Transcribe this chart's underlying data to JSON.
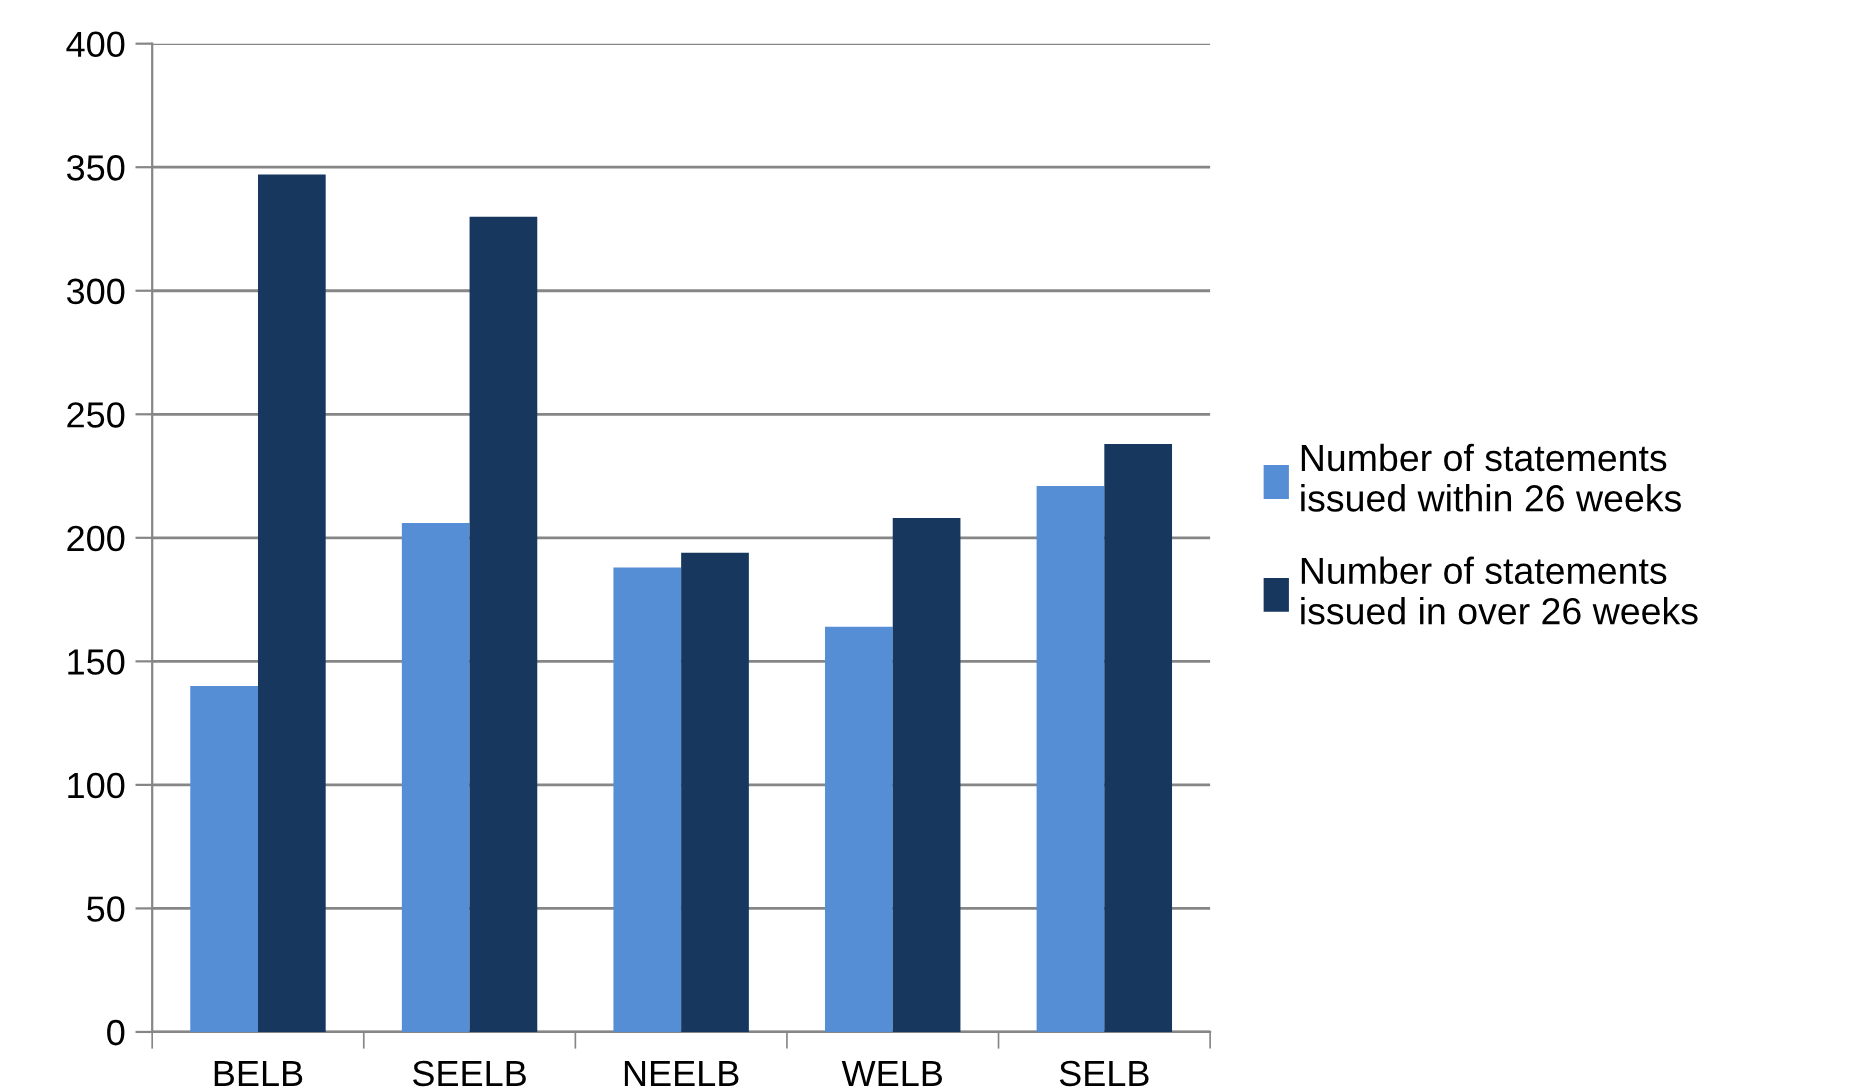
{
  "chart_data": {
    "type": "bar",
    "categories": [
      "BELB",
      "SEELB",
      "NEELB",
      "WELB",
      "SELB"
    ],
    "series": [
      {
        "name": "Number of statements issued within 26 weeks",
        "color": "#558ed5",
        "values": [
          140,
          206,
          188,
          164,
          221
        ]
      },
      {
        "name": "Number of statements issued in over 26 weeks",
        "color": "#17375e",
        "values": [
          347,
          330,
          194,
          208,
          238
        ]
      }
    ],
    "ylim": [
      0,
      400
    ],
    "yticks": [
      0,
      50,
      100,
      150,
      200,
      250,
      300,
      350,
      400
    ],
    "grid": "y",
    "legend": "right"
  }
}
